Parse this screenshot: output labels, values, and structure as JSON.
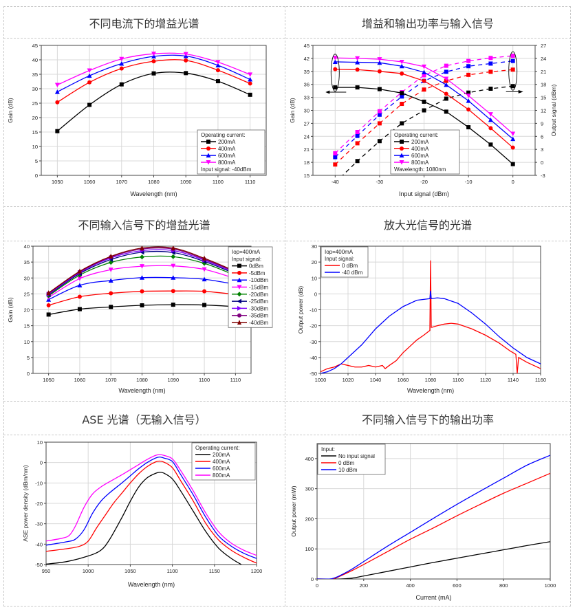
{
  "titles": [
    "不同电流下的增益光谱",
    "增益和输出功率与输入信号",
    "不同输入信号下的增益光谱",
    "放大光信号的光谱",
    "ASE 光谱（无输入信号）",
    "不同输入信号下的输出功率"
  ],
  "chart_data": [
    {
      "id": "gain-vs-wavelength-current",
      "type": "line",
      "title": "不同电流下的增益光谱",
      "xlabel": "Wavelength (nm)",
      "ylabel": "Gain (dB)",
      "xlim": [
        1045,
        1115
      ],
      "ylim": [
        0,
        45
      ],
      "xticks": [
        1050,
        1060,
        1070,
        1080,
        1090,
        1100,
        1110
      ],
      "yticks": [
        0,
        5,
        10,
        15,
        20,
        25,
        30,
        35,
        40,
        45
      ],
      "grid": true,
      "legend_title": "Operating current:",
      "legend_note": "Input signal: -40dBm",
      "legend_position": "bottom-right",
      "x": [
        1050,
        1060,
        1070,
        1080,
        1090,
        1100,
        1110
      ],
      "series": [
        {
          "name": "200mA",
          "color": "#000000",
          "marker": "square",
          "values": [
            15.3,
            24.4,
            31.5,
            35.3,
            35.4,
            32.6,
            27.9
          ]
        },
        {
          "name": "400mA",
          "color": "#ff0000",
          "marker": "circle",
          "values": [
            25.3,
            32.2,
            37.0,
            39.5,
            39.8,
            36.4,
            31.8
          ]
        },
        {
          "name": "600mA",
          "color": "#0000ff",
          "marker": "triangle-up",
          "values": [
            28.9,
            34.5,
            38.7,
            41.2,
            41.3,
            38.1,
            33.2
          ]
        },
        {
          "name": "800mA",
          "color": "#ff00ff",
          "marker": "triangle-down",
          "values": [
            31.3,
            36.3,
            40.3,
            42.1,
            42.0,
            39.2,
            34.9
          ]
        }
      ]
    },
    {
      "id": "gain-output-vs-input",
      "type": "line",
      "title": "增益和输出功率与输入信号",
      "xlabel": "Input signal (dBm)",
      "ylabel": "Gain (dB)",
      "ylabel_right": "Output signal (dBm)",
      "xlim": [
        -45,
        5
      ],
      "ylim": [
        15,
        45
      ],
      "ylim_right": [
        -3,
        27
      ],
      "xticks": [
        -40,
        -30,
        -20,
        -10,
        0
      ],
      "yticks": [
        15,
        18,
        21,
        24,
        27,
        30,
        33,
        36,
        39,
        42,
        45
      ],
      "yticks_right": [
        -3,
        0,
        3,
        6,
        9,
        12,
        15,
        18,
        21,
        24,
        27
      ],
      "grid": true,
      "legend_title": "Operating current:",
      "legend_note": "Wavelength: 1080nm",
      "legend_position": "bottom-center",
      "x": [
        -40,
        -35,
        -30,
        -25,
        -20,
        -15,
        -10,
        -5,
        0
      ],
      "series": [
        {
          "name": "200mA",
          "color": "#000000",
          "marker": "square",
          "axis": "left",
          "values": [
            35.3,
            35.3,
            34.9,
            34.0,
            32.0,
            29.7,
            26.1,
            22.1,
            17.6
          ]
        },
        {
          "name": "400mA",
          "color": "#ff0000",
          "marker": "circle",
          "axis": "left",
          "values": [
            39.5,
            39.4,
            39.0,
            38.5,
            36.8,
            33.8,
            30.2,
            25.9,
            21.4
          ]
        },
        {
          "name": "600mA",
          "color": "#0000ff",
          "marker": "triangle-up",
          "axis": "left",
          "values": [
            41.2,
            41.1,
            41.0,
            40.2,
            38.8,
            35.9,
            32.2,
            27.8,
            23.4
          ]
        },
        {
          "name": "800mA",
          "color": "#ff00ff",
          "marker": "triangle-down",
          "axis": "left",
          "values": [
            42.1,
            42.0,
            41.8,
            41.2,
            40.1,
            37.3,
            33.4,
            29.1,
            24.6
          ]
        }
      ],
      "series_right": [
        {
          "name": "200mA",
          "color": "#000000",
          "dashed": true,
          "values": [
            -4.7,
            0.3,
            4.9,
            9.0,
            12.0,
            14.7,
            16.1,
            17.0,
            17.6
          ]
        },
        {
          "name": "400mA",
          "color": "#ff0000",
          "dashed": true,
          "values": [
            -0.5,
            4.4,
            9.0,
            13.5,
            16.8,
            18.8,
            20.2,
            20.9,
            21.4
          ]
        },
        {
          "name": "600mA",
          "color": "#0000ff",
          "dashed": true,
          "values": [
            1.2,
            6.1,
            11.0,
            15.2,
            18.8,
            20.9,
            22.2,
            22.8,
            23.4
          ]
        },
        {
          "name": "800mA",
          "color": "#ff00ff",
          "dashed": true,
          "values": [
            2.1,
            7.0,
            11.8,
            16.2,
            20.1,
            22.3,
            23.4,
            24.1,
            24.6
          ]
        }
      ]
    },
    {
      "id": "gain-vs-wavelength-input",
      "type": "line",
      "title": "不同输入信号下的增益光谱",
      "xlabel": "Wavelength (nm)",
      "ylabel": "Gain (dB)",
      "xlim": [
        1045,
        1115
      ],
      "ylim": [
        0,
        40
      ],
      "xticks": [
        1050,
        1060,
        1070,
        1080,
        1090,
        1100,
        1110
      ],
      "yticks": [
        0,
        5,
        10,
        15,
        20,
        25,
        30,
        35,
        40
      ],
      "grid": true,
      "legend_title": "Iop=400mA",
      "legend_subtitle": "Input signal:",
      "legend_position": "top-right",
      "x": [
        1050,
        1060,
        1070,
        1080,
        1090,
        1100,
        1110
      ],
      "series": [
        {
          "name": "0dBm",
          "color": "#000000",
          "marker": "square",
          "values": [
            18.5,
            20.2,
            20.9,
            21.4,
            21.6,
            21.5,
            21.0
          ]
        },
        {
          "name": "-5dBm",
          "color": "#ff0000",
          "marker": "circle",
          "values": [
            21.4,
            24.1,
            25.2,
            25.8,
            25.9,
            25.8,
            24.8
          ]
        },
        {
          "name": "-10dBm",
          "color": "#0000ff",
          "marker": "triangle-up",
          "values": [
            23.2,
            27.7,
            29.2,
            30.1,
            30.1,
            29.6,
            28.0
          ]
        },
        {
          "name": "-15dBm",
          "color": "#ff00ff",
          "marker": "triangle-down",
          "values": [
            23.9,
            29.8,
            32.6,
            33.7,
            33.8,
            32.7,
            29.8
          ]
        },
        {
          "name": "-20dBm",
          "color": "#008000",
          "marker": "diamond",
          "values": [
            24.4,
            30.9,
            34.9,
            36.6,
            36.7,
            34.6,
            30.8
          ]
        },
        {
          "name": "-25dBm",
          "color": "#000080",
          "marker": "triangle-left",
          "values": [
            24.7,
            31.4,
            35.8,
            38.1,
            38.0,
            35.2,
            31.3
          ]
        },
        {
          "name": "-30dBm",
          "color": "#8000ff",
          "marker": "triangle-right",
          "values": [
            24.9,
            31.7,
            36.3,
            38.6,
            38.6,
            35.6,
            31.6
          ]
        },
        {
          "name": "-35dBm",
          "color": "#800080",
          "marker": "hexagon",
          "values": [
            25.1,
            31.9,
            36.6,
            39.1,
            39.1,
            35.9,
            31.9
          ]
        },
        {
          "name": "-40dBm",
          "color": "#800000",
          "marker": "star",
          "values": [
            25.3,
            32.1,
            36.8,
            39.4,
            39.4,
            36.2,
            32.1
          ]
        }
      ]
    },
    {
      "id": "amplified-spectrum",
      "type": "line",
      "title": "放大光信号的光谱",
      "xlabel": "Wavelength (nm)",
      "ylabel": "Output power (dB)",
      "xlim": [
        1000,
        1160
      ],
      "ylim": [
        -50,
        30
      ],
      "xticks": [
        1000,
        1020,
        1040,
        1060,
        1080,
        1100,
        1120,
        1140,
        1160
      ],
      "yticks": [
        -50,
        -40,
        -30,
        -20,
        -10,
        0,
        10,
        20,
        30
      ],
      "grid": true,
      "legend_title": "Iop=400mA",
      "legend_subtitle": "Input signal:",
      "legend_position": "top-left",
      "series": [
        {
          "name": "0 dBm",
          "color": "#ff0000",
          "x": [
            1000,
            1005,
            1010,
            1015,
            1020,
            1025,
            1030,
            1035,
            1040,
            1045,
            1047,
            1050,
            1055,
            1060,
            1065,
            1070,
            1075,
            1079.5,
            1080,
            1080.5,
            1081,
            1085,
            1090,
            1095,
            1100,
            1110,
            1120,
            1130,
            1138,
            1142,
            1143,
            1144,
            1150,
            1155,
            1160
          ],
          "values": [
            -49,
            -47,
            -46,
            -44,
            -45,
            -46,
            -46,
            -45,
            -46,
            -45,
            -47,
            -45,
            -42,
            -37,
            -33,
            -29,
            -26,
            -23,
            21,
            -21,
            -21,
            -20,
            -19,
            -18.5,
            -19,
            -22,
            -26,
            -31,
            -36,
            -38,
            -50,
            -40,
            -43,
            -45,
            -47
          ]
        },
        {
          "name": "-40 dBm",
          "color": "#0000ff",
          "x": [
            1000,
            1005,
            1010,
            1015,
            1020,
            1025,
            1030,
            1040,
            1050,
            1060,
            1070,
            1079.5,
            1080,
            1080.5,
            1085,
            1090,
            1100,
            1110,
            1120,
            1130,
            1140,
            1150,
            1160
          ],
          "values": [
            -50,
            -49,
            -47,
            -44,
            -40,
            -36,
            -32,
            -22,
            -14,
            -8,
            -4,
            -3,
            2,
            -3,
            -2.5,
            -3,
            -6,
            -12,
            -19,
            -27,
            -34,
            -40,
            -44
          ]
        }
      ]
    },
    {
      "id": "ase-spectrum",
      "type": "line",
      "title": "ASE 光谱（无输入信号）",
      "xlabel": "Wavelength (nm)",
      "ylabel": "ASE power density (dBm/nm)",
      "xlim": [
        950,
        1200
      ],
      "ylim": [
        -50,
        10
      ],
      "xticks": [
        950,
        1000,
        1050,
        1100,
        1150,
        1200
      ],
      "yticks": [
        -50,
        -40,
        -30,
        -20,
        -10,
        0,
        10
      ],
      "grid": true,
      "legend_title": "Operating current:",
      "legend_position": "top-right",
      "series": [
        {
          "name": "200mA",
          "color": "#000000",
          "x": [
            950,
            975,
            1000,
            1015,
            1025,
            1040,
            1050,
            1060,
            1070,
            1080,
            1085,
            1090,
            1100,
            1110,
            1125,
            1140,
            1155,
            1170,
            1182
          ],
          "values": [
            -49.8,
            -48.5,
            -45.8,
            -43,
            -38,
            -27,
            -19,
            -12,
            -7.5,
            -5.3,
            -4.8,
            -5.2,
            -8,
            -14,
            -24,
            -34,
            -42,
            -47,
            -50
          ]
        },
        {
          "name": "400mA",
          "color": "#ff0000",
          "x": [
            950,
            975,
            990,
            1000,
            1010,
            1020,
            1030,
            1040,
            1050,
            1060,
            1070,
            1080,
            1085,
            1090,
            1100,
            1110,
            1125,
            1140,
            1155,
            1170,
            1185,
            1200
          ],
          "values": [
            -43.5,
            -42.2,
            -41,
            -38.5,
            -32,
            -26,
            -20,
            -15,
            -10,
            -5.5,
            -2,
            0.3,
            0.7,
            0.2,
            -2.5,
            -9,
            -19,
            -30,
            -38,
            -43,
            -46.5,
            -49.3
          ]
        },
        {
          "name": "600mA",
          "color": "#0000ff",
          "x": [
            950,
            975,
            985,
            995,
            1005,
            1015,
            1025,
            1040,
            1050,
            1060,
            1070,
            1080,
            1085,
            1090,
            1100,
            1110,
            1125,
            1140,
            1155,
            1170,
            1185,
            1200
          ],
          "values": [
            -40.5,
            -38.8,
            -37.5,
            -33,
            -25,
            -19,
            -15,
            -10,
            -6.5,
            -3,
            0,
            2.2,
            2.7,
            2.2,
            0.5,
            -6,
            -16,
            -27,
            -36,
            -41,
            -44.5,
            -47
          ]
        },
        {
          "name": "800mA",
          "color": "#ff00ff",
          "x": [
            950,
            970,
            978,
            985,
            995,
            1005,
            1015,
            1025,
            1040,
            1050,
            1060,
            1070,
            1080,
            1085,
            1090,
            1100,
            1110,
            1125,
            1140,
            1155,
            1170,
            1185,
            1200
          ],
          "values": [
            -38.5,
            -37,
            -35.5,
            -31,
            -22,
            -15.5,
            -12,
            -9.5,
            -6,
            -3.5,
            -1,
            1.5,
            3.5,
            3.9,
            3.5,
            1.8,
            -4,
            -14,
            -25,
            -34,
            -39.5,
            -43,
            -45.5
          ]
        }
      ]
    },
    {
      "id": "output-power-vs-current",
      "type": "line",
      "title": "不同输入信号下的输出功率",
      "xlabel": "Current (mA)",
      "ylabel": "Output power (mW)",
      "xlim": [
        0,
        1000
      ],
      "ylim": [
        0,
        450
      ],
      "xticks": [
        0,
        200,
        400,
        600,
        800,
        1000
      ],
      "yticks": [
        0,
        100,
        200,
        300,
        400
      ],
      "grid": true,
      "legend_title": "Input:",
      "legend_position": "top-left",
      "series": [
        {
          "name": "No input signal",
          "color": "#000000",
          "x": [
            0,
            100,
            150,
            200,
            300,
            400,
            500,
            600,
            700,
            800,
            900,
            1000
          ],
          "values": [
            0,
            0,
            3,
            10,
            25,
            40,
            55,
            69,
            83,
            97,
            111,
            124
          ]
        },
        {
          "name": "0 dBm",
          "color": "#ff0000",
          "x": [
            0,
            60,
            80,
            100,
            150,
            200,
            300,
            400,
            500,
            600,
            700,
            800,
            900,
            1000
          ],
          "values": [
            0,
            0,
            3,
            10,
            28,
            48,
            90,
            132,
            170,
            210,
            248,
            285,
            318,
            351
          ]
        },
        {
          "name": "10 dBm",
          "color": "#0000ff",
          "x": [
            0,
            55,
            80,
            100,
            150,
            200,
            300,
            400,
            500,
            600,
            700,
            800,
            900,
            1000
          ],
          "values": [
            0,
            0,
            5,
            12,
            33,
            58,
            108,
            155,
            202,
            248,
            292,
            335,
            378,
            411
          ]
        }
      ]
    }
  ]
}
